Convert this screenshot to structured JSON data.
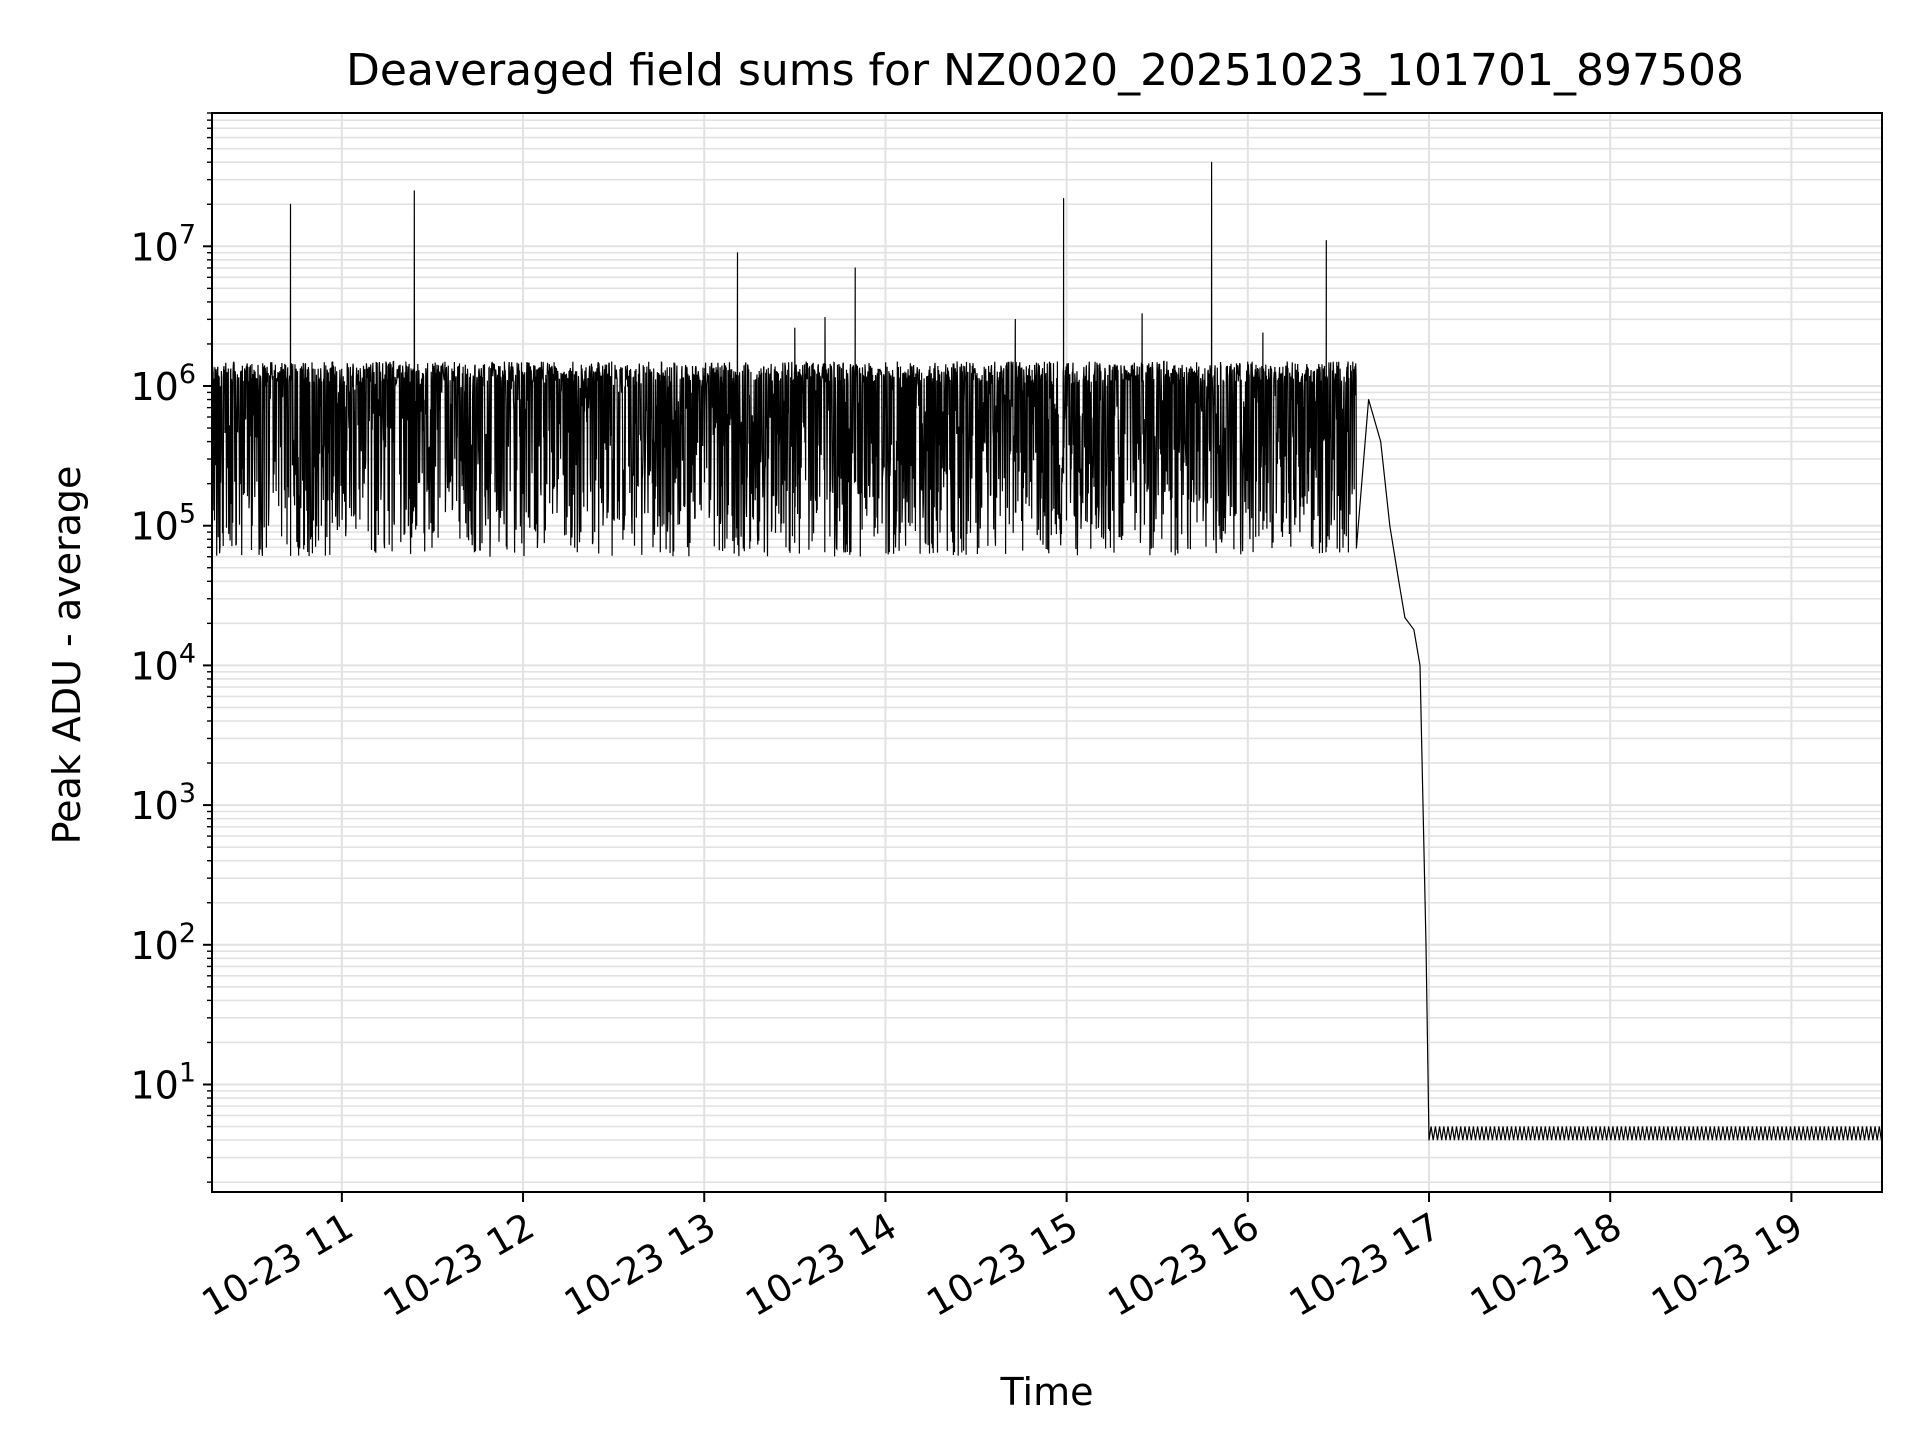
{
  "chart_data": {
    "type": "line",
    "title": "Deaveraged field sums for NZ0020_20251023_101701_897508",
    "xlabel": "Time",
    "ylabel": "Peak ADU - average",
    "yscale": "log",
    "grid": true,
    "legend": "none",
    "xlim": [
      "2025-10-23 10:17",
      "2025-10-23 19:30"
    ],
    "ylim": [
      1.7,
      90000000
    ],
    "x_ticks": [
      "10-23 11",
      "10-23 12",
      "10-23 13",
      "10-23 14",
      "10-23 15",
      "10-23 16",
      "10-23 17",
      "10-23 18",
      "10-23 19"
    ],
    "y_ticks": [
      {
        "base": "10",
        "exp": "1",
        "value": 10
      },
      {
        "base": "10",
        "exp": "2",
        "value": 100
      },
      {
        "base": "10",
        "exp": "3",
        "value": 1000
      },
      {
        "base": "10",
        "exp": "4",
        "value": 10000
      },
      {
        "base": "10",
        "exp": "5",
        "value": 100000
      },
      {
        "base": "10",
        "exp": "6",
        "value": 1000000
      },
      {
        "base": "10",
        "exp": "7",
        "value": 10000000
      }
    ],
    "series": [
      {
        "color": "#000000",
        "description_points": [
          {
            "x": "2025-10-23 10:17",
            "y": 600000
          },
          {
            "x": "2025-10-23 10:43",
            "y": 20000000
          },
          {
            "x": "2025-10-23 11:24",
            "y": 25000000
          },
          {
            "x": "2025-10-23 13:11",
            "y": 9000000
          },
          {
            "x": "2025-10-23 13:30",
            "y": 2600000
          },
          {
            "x": "2025-10-23 13:40",
            "y": 3100000
          },
          {
            "x": "2025-10-23 13:50",
            "y": 7000000
          },
          {
            "x": "2025-10-23 14:43",
            "y": 3000000
          },
          {
            "x": "2025-10-23 14:59",
            "y": 22000000
          },
          {
            "x": "2025-10-23 15:25",
            "y": 3300000
          },
          {
            "x": "2025-10-23 15:48",
            "y": 40000000
          },
          {
            "x": "2025-10-23 16:05",
            "y": 2400000
          },
          {
            "x": "2025-10-23 16:26",
            "y": 11000000
          },
          {
            "x": "2025-10-23 16:35",
            "y": 900000
          },
          {
            "x": "2025-10-23 16:40",
            "y": 800000
          },
          {
            "x": "2025-10-23 16:44",
            "y": 400000
          },
          {
            "x": "2025-10-23 16:47",
            "y": 100000
          },
          {
            "x": "2025-10-23 16:50",
            "y": 40000
          },
          {
            "x": "2025-10-23 16:52",
            "y": 22000
          },
          {
            "x": "2025-10-23 16:55",
            "y": 18000
          },
          {
            "x": "2025-10-23 16:57",
            "y": 10000
          },
          {
            "x": "2025-10-23 16:58",
            "y": 1000
          },
          {
            "x": "2025-10-23 16:59",
            "y": 100
          },
          {
            "x": "2025-10-23 17:00",
            "y": 4
          },
          {
            "x": "2025-10-23 19:30",
            "y": 4
          }
        ],
        "noise_band": {
          "from": "2025-10-23 10:17",
          "to": "2025-10-23 16:36",
          "low": 60000,
          "high": 1500000
        },
        "floor_band": {
          "from": "2025-10-23 17:00",
          "to": "2025-10-23 19:30",
          "low": 4,
          "high": 5
        }
      }
    ]
  }
}
